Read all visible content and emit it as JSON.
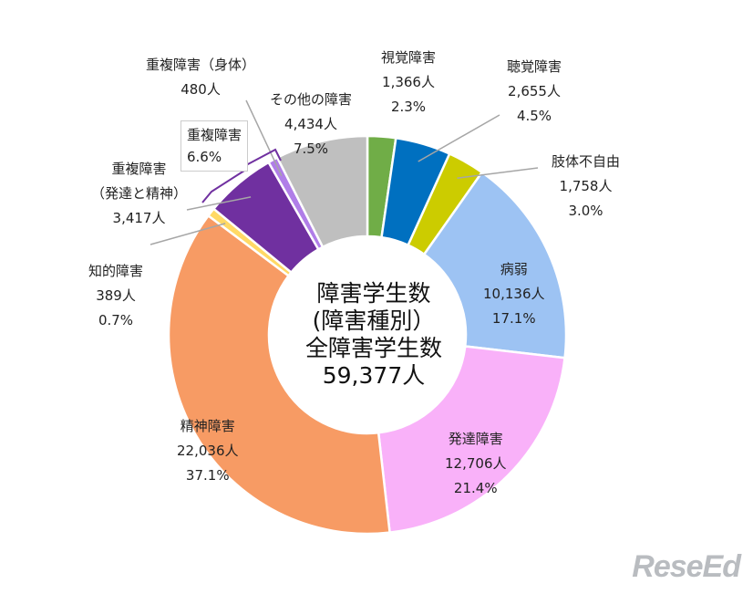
{
  "chart_data": {
    "type": "pie",
    "style": "donut",
    "center_text": [
      "障害学生数",
      "(障害種別）",
      "全障害学生数",
      "59,377人"
    ],
    "slices": [
      {
        "name": "視覚障害",
        "count": "1,366人",
        "pct": "2.3%",
        "value": 2.3,
        "color": "#70ad47"
      },
      {
        "name": "聴覚障害",
        "count": "2,655人",
        "pct": "4.5%",
        "value": 4.5,
        "color": "#0070c0"
      },
      {
        "name": "肢体不自由",
        "count": "1,758人",
        "pct": "3.0%",
        "value": 3.0,
        "color": "#cccc00"
      },
      {
        "name": "病弱",
        "count": "10,136人",
        "pct": "17.1%",
        "value": 17.1,
        "color": "#9dc3f3"
      },
      {
        "name": "発達障害",
        "count": "12,706人",
        "pct": "21.4%",
        "value": 21.4,
        "color": "#f9b1f9"
      },
      {
        "name": "精神障害",
        "count": "22,036人",
        "pct": "37.1%",
        "value": 37.1,
        "color": "#f79b64"
      },
      {
        "name": "知的障害",
        "count": "389人",
        "pct": "0.7%",
        "value": 0.7,
        "color": "#ffd966"
      },
      {
        "name": "重複障害",
        "name2": "（発達と精神）",
        "count": "3,417人",
        "value": 5.8,
        "color": "#7030a0"
      },
      {
        "name": "重複障害（身体）",
        "count": "480人",
        "value": 0.8,
        "color": "#b07ee8"
      },
      {
        "name": "その他の障害",
        "count": "4,434人",
        "pct": "7.5%",
        "value": 7.5,
        "color": "#bfbfbf"
      }
    ],
    "group_callout": {
      "label": "重複障害",
      "pct": "6.6%"
    }
  },
  "logo_text": "ReseEd"
}
